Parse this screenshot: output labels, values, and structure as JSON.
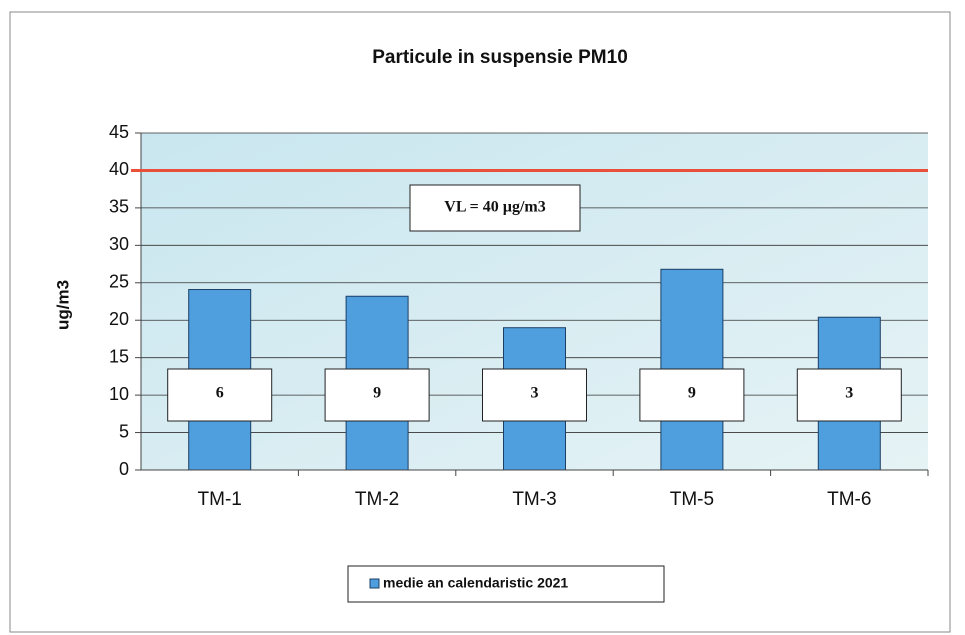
{
  "chart_data": {
    "type": "bar",
    "title": "Particule in suspensie PM10",
    "y_label": "ug/m3",
    "categories": [
      "TM-1",
      "TM-2",
      "TM-3",
      "TM-5",
      "TM-6"
    ],
    "series": [
      {
        "name": "medie an calendaristic 2021",
        "color": "#4f9ede",
        "values": [
          24.1,
          23.2,
          19,
          26.8,
          20.4
        ]
      }
    ],
    "box_labels": [
      6,
      9,
      3,
      9,
      3
    ],
    "reference_line": {
      "value": 40,
      "label": "VL = 40 µg/m3",
      "color": "#e8503a"
    },
    "ylim": [
      0,
      45
    ],
    "yticks": [
      0,
      5,
      10,
      15,
      20,
      25,
      30,
      35,
      40,
      45
    ],
    "grid": true,
    "legend": "bottom"
  }
}
